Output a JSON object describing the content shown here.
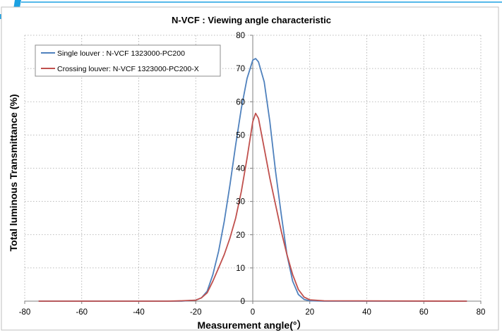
{
  "chart_data": {
    "type": "line",
    "title": "N-VCF : Viewing angle characteristic",
    "xlabel": "Measurement angle(°）",
    "ylabel": "Total luminous Transmittance (%)",
    "xlim": [
      -80,
      80
    ],
    "ylim": [
      0,
      80
    ],
    "x_ticks": [
      -80,
      -60,
      -40,
      -20,
      0,
      20,
      40,
      60,
      80
    ],
    "y_ticks": [
      0,
      10,
      20,
      30,
      40,
      50,
      60,
      70,
      80
    ],
    "grid": "on",
    "legend_position": "top-left",
    "series": [
      {
        "name": "Single louver : N-VCF 1323000-PC200",
        "color": "#4F81BD",
        "points": [
          [
            -75,
            0
          ],
          [
            -30,
            0
          ],
          [
            -25,
            0
          ],
          [
            -20,
            0.3
          ],
          [
            -18,
            1
          ],
          [
            -16,
            3
          ],
          [
            -14,
            8
          ],
          [
            -12,
            15
          ],
          [
            -10,
            24
          ],
          [
            -8,
            35
          ],
          [
            -6,
            47
          ],
          [
            -4,
            58
          ],
          [
            -2,
            67
          ],
          [
            0,
            72.5
          ],
          [
            1,
            73
          ],
          [
            2,
            72
          ],
          [
            4,
            66
          ],
          [
            6,
            54
          ],
          [
            8,
            39
          ],
          [
            10,
            26
          ],
          [
            12,
            14
          ],
          [
            14,
            6
          ],
          [
            16,
            2
          ],
          [
            18,
            0.5
          ],
          [
            20,
            0.1
          ],
          [
            25,
            0
          ],
          [
            75,
            0
          ]
        ]
      },
      {
        "name": "Crossing louver: N-VCF 1323000-PC200-X",
        "color": "#C0504D",
        "points": [
          [
            -75,
            0
          ],
          [
            -30,
            0
          ],
          [
            -25,
            0.1
          ],
          [
            -20,
            0.3
          ],
          [
            -18,
            1
          ],
          [
            -16,
            2.5
          ],
          [
            -14,
            6
          ],
          [
            -12,
            10
          ],
          [
            -10,
            14
          ],
          [
            -8,
            19
          ],
          [
            -6,
            25
          ],
          [
            -4,
            33
          ],
          [
            -2,
            43
          ],
          [
            0,
            54
          ],
          [
            1,
            56.5
          ],
          [
            2,
            55
          ],
          [
            4,
            46
          ],
          [
            6,
            37
          ],
          [
            8,
            29
          ],
          [
            10,
            21
          ],
          [
            12,
            14
          ],
          [
            14,
            8
          ],
          [
            16,
            3.5
          ],
          [
            18,
            1.2
          ],
          [
            20,
            0.4
          ],
          [
            25,
            0.1
          ],
          [
            75,
            0
          ]
        ]
      }
    ]
  },
  "colors": {
    "blue_accent": "#1BA1E2"
  }
}
